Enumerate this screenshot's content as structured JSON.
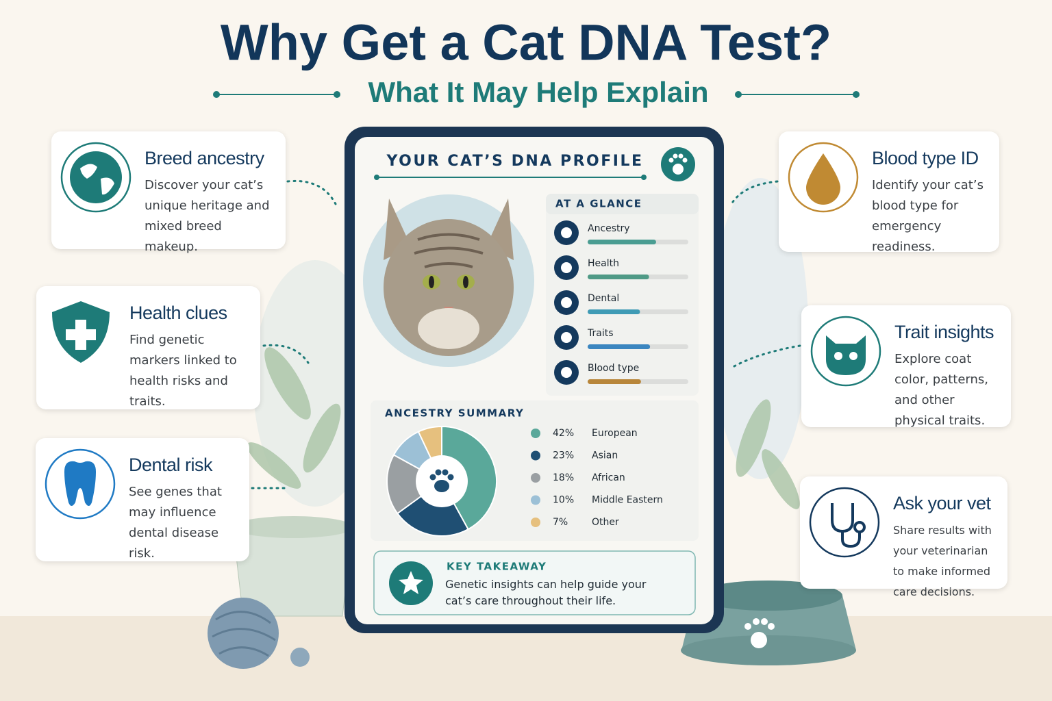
{
  "header": {
    "title": "Why Get a Cat DNA Test?",
    "subtitle": "What It May Help Explain"
  },
  "cards": [
    {
      "title": "Breed ancestry",
      "text": "Discover your cat’s unique heritage and mixed breed makeup."
    },
    {
      "title": "Health clues",
      "text": "Find genetic markers linked to health risks and traits."
    },
    {
      "title": "Dental risk",
      "text": "See genes that may influence dental disease risk."
    },
    {
      "title": "Blood type ID",
      "text": "Identify your cat’s blood type for emergency readiness."
    },
    {
      "title": "Trait insights",
      "text": "Explore coat color, patterns, and other physical traits."
    },
    {
      "title": "Ask your vet",
      "text": "Share results with your veterinarian to make informed care decisions."
    }
  ],
  "profile": {
    "title": "YOUR CAT’S DNA PROFILE",
    "glance_title": "AT A GLANCE",
    "glance": [
      {
        "label": "Ancestry",
        "value": 68,
        "color": "#4a9d92"
      },
      {
        "label": "Health",
        "value": 61,
        "color": "#4f9a86"
      },
      {
        "label": "Dental",
        "value": 52,
        "color": "#3f9bb5"
      },
      {
        "label": "Traits",
        "value": 62,
        "color": "#3b86c0"
      },
      {
        "label": "Blood type",
        "value": 53,
        "color": "#b8863a"
      }
    ]
  },
  "chart_data": {
    "type": "pie",
    "title": "ANCESTRY SUMMARY",
    "categories": [
      "European",
      "Asian",
      "African",
      "Middle Eastern",
      "Other"
    ],
    "values": [
      42,
      23,
      18,
      10,
      7
    ],
    "value_labels": [
      "42%",
      "23%",
      "18%",
      "10%",
      "7%"
    ],
    "colors": [
      "#5aa89a",
      "#1f4f73",
      "#9a9fa2",
      "#9cc0d6",
      "#e6c07e"
    ]
  },
  "takeaway": {
    "title": "KEY TAKEAWAY",
    "text": "Genetic insights can help guide your cat’s care throughout their life."
  }
}
